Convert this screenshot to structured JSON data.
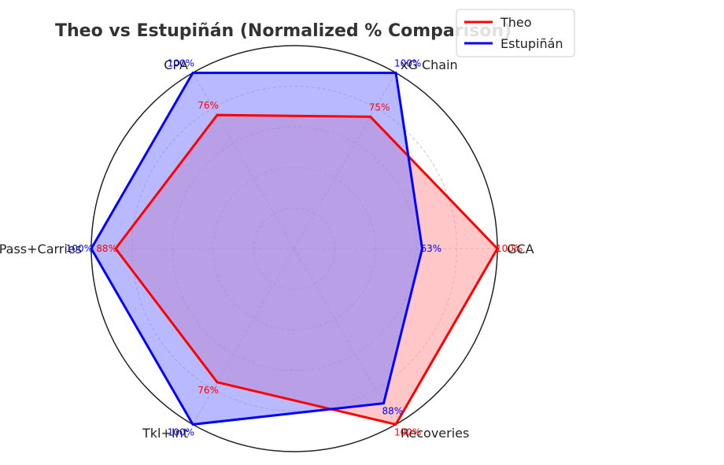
{
  "chart_data": {
    "type": "radar",
    "title": "Theo vs Estupiñán (Normalized % Comparison)",
    "categories": [
      "GCA",
      "xG Chain",
      "CPA",
      "Prog Pass+Carries",
      "Tkl+Int",
      "Recoveries"
    ],
    "rlim": [
      0,
      100
    ],
    "grid": true,
    "legend_position": "top-right",
    "series": [
      {
        "name": "Theo",
        "color": "#ff0000",
        "fill": "#ff9999",
        "values": [
          100,
          75,
          76,
          88,
          76,
          100
        ],
        "labels": [
          "100%",
          "75%",
          "76%",
          "88%",
          "76%",
          "100%"
        ]
      },
      {
        "name": "Estupiñán",
        "color": "#0000ff",
        "fill": "#8080ff",
        "values": [
          63,
          100,
          100,
          100,
          100,
          88
        ],
        "labels": [
          "63%",
          "100%",
          "100%",
          "100%",
          "100%",
          "88%"
        ]
      }
    ]
  }
}
